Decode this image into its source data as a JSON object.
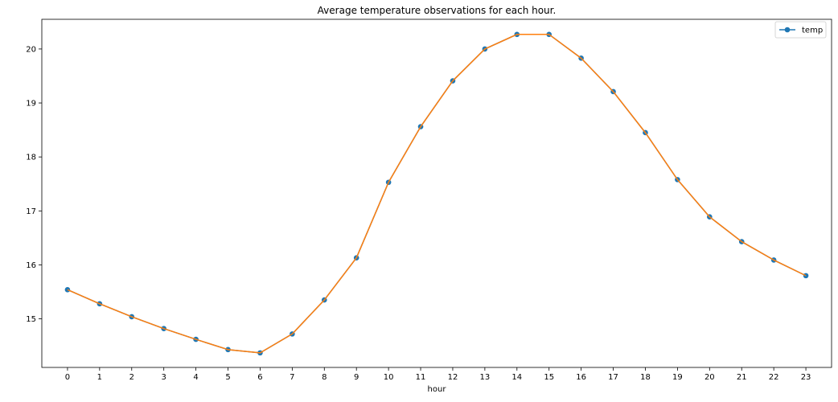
{
  "chart_data": {
    "type": "line",
    "title": "Average temperature observations for each hour.",
    "xlabel": "hour",
    "ylabel": "",
    "x": [
      0,
      1,
      2,
      3,
      4,
      5,
      6,
      7,
      8,
      9,
      10,
      11,
      12,
      13,
      14,
      15,
      16,
      17,
      18,
      19,
      20,
      21,
      22,
      23
    ],
    "x_tick_labels": [
      "0",
      "1",
      "2",
      "3",
      "4",
      "5",
      "6",
      "7",
      "8",
      "9",
      "10",
      "11",
      "12",
      "13",
      "14",
      "15",
      "16",
      "17",
      "18",
      "19",
      "20",
      "21",
      "22",
      "23"
    ],
    "y_ticks": [
      15,
      16,
      17,
      18,
      19,
      20
    ],
    "y_tick_labels": [
      "15",
      "16",
      "17",
      "18",
      "19",
      "20"
    ],
    "xlim": [
      -0.8,
      23.8
    ],
    "ylim": [
      14.1,
      20.55
    ],
    "grid": false,
    "legend_position": "top-right",
    "series": [
      {
        "name": "temp",
        "color": "#1f77b4",
        "marker": "circle",
        "line_color": "#ff7f0e",
        "values": [
          15.54,
          15.28,
          15.04,
          14.82,
          14.62,
          14.43,
          14.37,
          14.72,
          15.35,
          16.13,
          17.53,
          18.56,
          19.41,
          20.0,
          20.27,
          20.27,
          19.83,
          19.21,
          18.45,
          17.58,
          16.89,
          16.43,
          16.09,
          15.8
        ]
      }
    ]
  }
}
